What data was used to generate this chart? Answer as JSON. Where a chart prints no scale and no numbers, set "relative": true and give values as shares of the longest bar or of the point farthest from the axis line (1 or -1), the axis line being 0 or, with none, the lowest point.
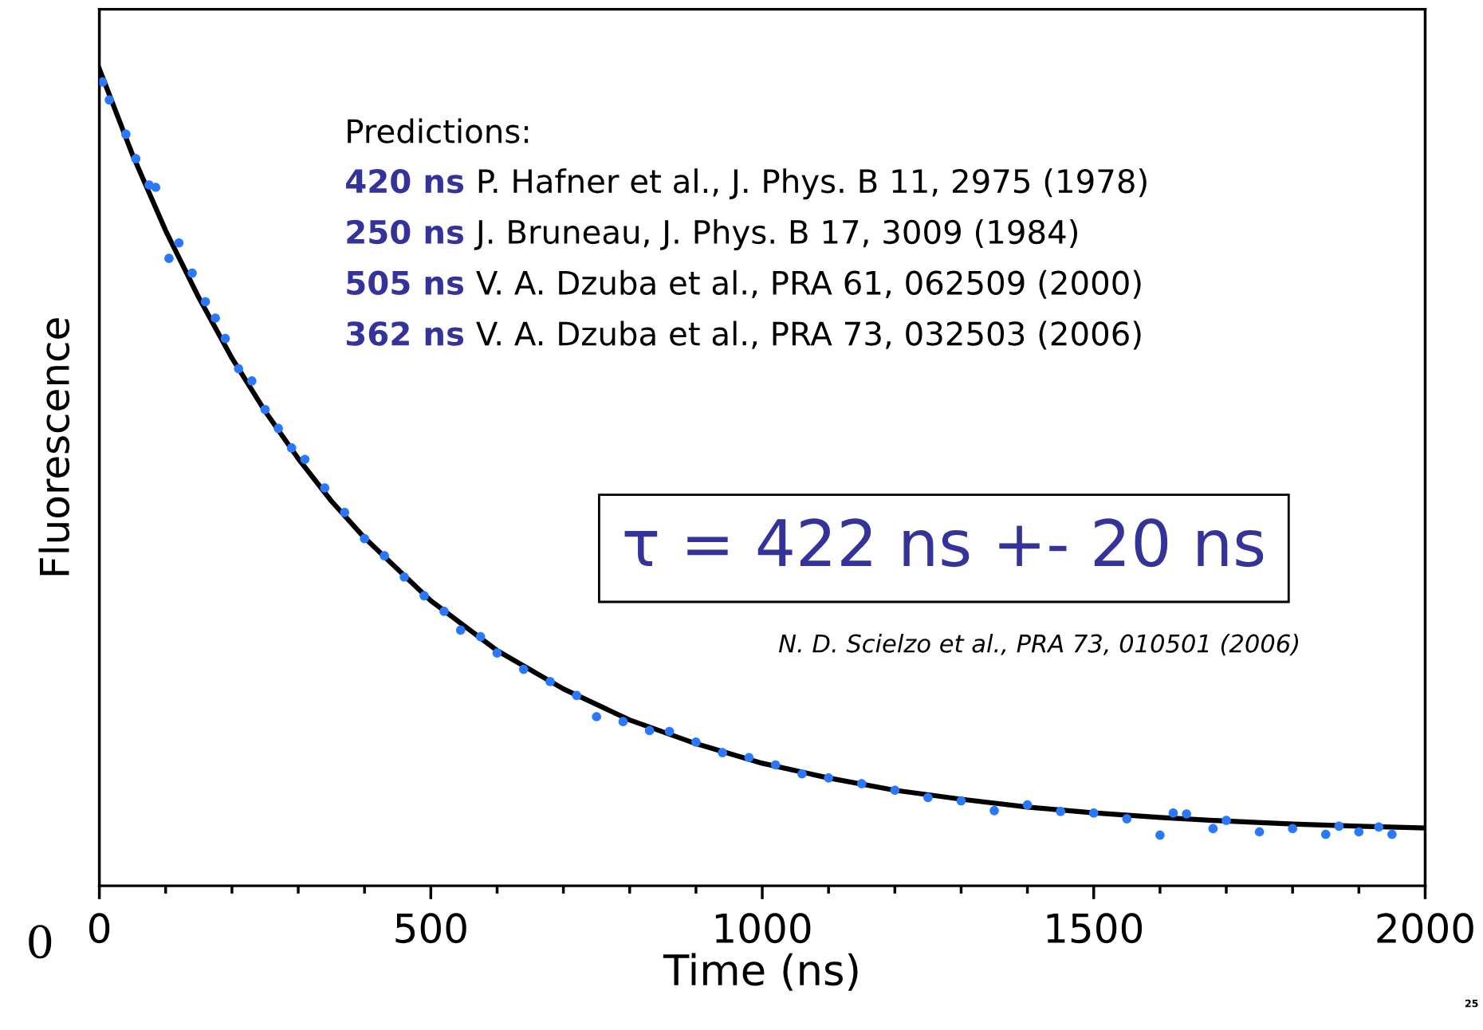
{
  "chart_data": {
    "type": "scatter",
    "relative": true,
    "xlabel": "Time (ns)",
    "ylabel": "Fluorescence",
    "xlim": [
      0,
      2000
    ],
    "xticks": [
      0,
      {
        "value": 100,
        "label": null
      },
      {
        "value": 200,
        "label": null
      },
      {
        "value": 300,
        "label": null
      },
      {
        "value": 400,
        "label": null
      },
      500,
      {
        "value": 600,
        "label": null
      },
      {
        "value": 700,
        "label": null
      },
      {
        "value": 800,
        "label": null
      },
      {
        "value": 900,
        "label": null
      },
      1000,
      {
        "value": 1100,
        "label": null
      },
      {
        "value": 1200,
        "label": null
      },
      {
        "value": 1300,
        "label": null
      },
      {
        "value": 1400,
        "label": null
      },
      1500,
      {
        "value": 1600,
        "label": null
      },
      {
        "value": 1700,
        "label": null
      },
      {
        "value": 1800,
        "label": null
      },
      {
        "value": 1900,
        "label": null
      },
      2000
    ],
    "grid": false,
    "legend": false,
    "marker": "circle",
    "series": [
      {
        "color": "#2a78ff",
        "x": [
          5,
          15,
          40,
          55,
          75,
          85,
          105,
          120,
          140,
          160,
          175,
          190,
          210,
          230,
          250,
          270,
          290,
          310,
          340,
          370,
          400,
          430,
          460,
          490,
          520,
          545,
          575,
          600,
          640,
          680,
          720,
          750,
          790,
          830,
          860,
          900,
          940,
          980,
          1020,
          1060,
          1100,
          1150,
          1200,
          1250,
          1300,
          1350,
          1400,
          1450,
          1500,
          1550,
          1600,
          1620,
          1640,
          1680,
          1700,
          1750,
          1800,
          1850,
          1870,
          1900,
          1930,
          1950
        ],
        "values": [
          0.984,
          0.962,
          0.92,
          0.89,
          0.858,
          0.855,
          0.768,
          0.787,
          0.75,
          0.715,
          0.695,
          0.67,
          0.633,
          0.618,
          0.583,
          0.56,
          0.536,
          0.522,
          0.487,
          0.457,
          0.425,
          0.404,
          0.378,
          0.355,
          0.336,
          0.313,
          0.305,
          0.285,
          0.265,
          0.25,
          0.233,
          0.207,
          0.201,
          0.19,
          0.189,
          0.176,
          0.163,
          0.157,
          0.148,
          0.137,
          0.132,
          0.125,
          0.117,
          0.108,
          0.104,
          0.092,
          0.099,
          0.091,
          0.089,
          0.082,
          0.062,
          0.089,
          0.088,
          0.07,
          0.08,
          0.066,
          0.07,
          0.063,
          0.073,
          0.066,
          0.072,
          0.063
        ]
      },
      {
        "type": "line",
        "color": "#000000",
        "marker": "none",
        "line_style": "solid",
        "x": [
          0,
          50,
          100,
          150,
          200,
          250,
          300,
          350,
          400,
          500,
          600,
          700,
          800,
          900,
          1000,
          1100,
          1200,
          1300,
          1400,
          1500,
          1600,
          1700,
          1800,
          1900,
          2000
        ],
        "values": [
          1.0,
          0.895,
          0.802,
          0.72,
          0.646,
          0.581,
          0.523,
          0.471,
          0.426,
          0.349,
          0.288,
          0.241,
          0.203,
          0.174,
          0.15,
          0.132,
          0.117,
          0.106,
          0.0964,
          0.0893,
          0.0837,
          0.0792,
          0.0756,
          0.0729,
          0.0707
        ]
      }
    ],
    "annotations": [
      "Predictions:",
      "420 ns P. Hafner et al., J. Phys. B 11, 2975 (1978)",
      "250 ns J. Bruneau, J. Phys. B 17, 3009 (1984)",
      "505 ns V. A. Dzuba et al., PRA 61, 062509 (2000)",
      "362 ns V. A. Dzuba et al., PRA 73, 032503 (2006)",
      "τ = 422 ns +- 20 ns",
      "N. D. Scielzo et al., PRA 73, 010501 (2006)",
      "0",
      "25"
    ]
  }
}
